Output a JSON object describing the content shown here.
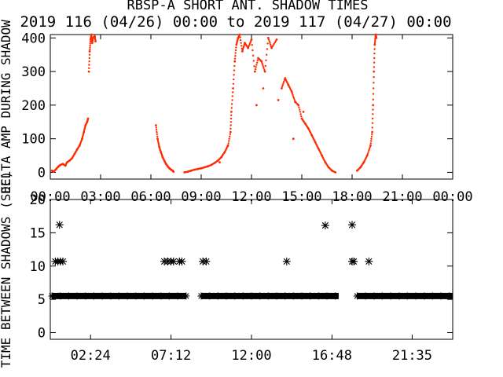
{
  "title": "RBSP-A SHORT ANT. SHADOW TIMES",
  "subtitle": "2019 116 (04/26) 00:00 to 2019 117 (04/27) 00:00",
  "colors": {
    "axis": "#000000",
    "scatter": "#ff2a00",
    "star": "#000000",
    "background": "#ffffff"
  },
  "chart_data": [
    {
      "type": "scatter",
      "panel": "top",
      "ylabel": "DELTA AMP DURING SHADOW",
      "x_unit": "hours",
      "xlim": [
        0,
        24
      ],
      "ylim": [
        -20,
        410
      ],
      "xticks": [
        0,
        3,
        6,
        9,
        12,
        15,
        18,
        21,
        24
      ],
      "xtick_labels": [
        "00:00",
        "03:00",
        "06:00",
        "09:00",
        "12:00",
        "15:00",
        "18:00",
        "21:00",
        "00:00"
      ],
      "yticks": [
        0,
        100,
        200,
        300,
        400
      ],
      "ytick_labels": [
        "0",
        "100",
        "200",
        "300",
        "400"
      ],
      "grid": false,
      "series": [
        {
          "color": "#ff2a00",
          "points": [
            [
              0.1,
              5
            ],
            [
              0.2,
              2
            ],
            [
              0.35,
              10
            ],
            [
              0.5,
              18
            ],
            [
              0.6,
              22
            ],
            [
              0.75,
              25
            ],
            [
              0.9,
              20
            ],
            [
              1.0,
              30
            ],
            [
              1.15,
              35
            ],
            [
              1.3,
              42
            ],
            [
              1.45,
              55
            ],
            [
              1.6,
              68
            ],
            [
              1.75,
              80
            ],
            [
              1.9,
              100
            ],
            [
              2.0,
              120
            ],
            [
              2.1,
              140
            ],
            [
              2.2,
              150
            ],
            [
              2.25,
              160
            ],
            [
              2.3,
              300
            ],
            [
              2.35,
              360
            ],
            [
              2.4,
              395
            ],
            [
              2.45,
              410
            ],
            [
              2.5,
              385
            ],
            [
              2.55,
              400
            ],
            [
              2.65,
              405
            ],
            [
              2.7,
              390
            ],
            [
              6.3,
              140
            ],
            [
              6.4,
              100
            ],
            [
              6.5,
              75
            ],
            [
              6.6,
              60
            ],
            [
              6.7,
              45
            ],
            [
              6.8,
              35
            ],
            [
              6.9,
              25
            ],
            [
              7.0,
              18
            ],
            [
              7.1,
              12
            ],
            [
              7.2,
              8
            ],
            [
              7.3,
              5
            ],
            [
              7.35,
              2
            ],
            [
              8.0,
              0
            ],
            [
              8.2,
              2
            ],
            [
              8.4,
              5
            ],
            [
              8.6,
              8
            ],
            [
              8.8,
              10
            ],
            [
              9.0,
              12
            ],
            [
              9.2,
              15
            ],
            [
              9.4,
              18
            ],
            [
              9.6,
              22
            ],
            [
              9.8,
              28
            ],
            [
              10.0,
              35
            ],
            [
              10.2,
              45
            ],
            [
              10.4,
              60
            ],
            [
              10.6,
              80
            ],
            [
              10.75,
              120
            ],
            [
              10.8,
              180
            ],
            [
              10.9,
              250
            ],
            [
              11.0,
              330
            ],
            [
              11.1,
              380
            ],
            [
              11.2,
              400
            ],
            [
              11.3,
              410
            ],
            [
              11.45,
              360
            ],
            [
              11.6,
              385
            ],
            [
              11.8,
              370
            ],
            [
              12.0,
              395
            ],
            [
              12.2,
              300
            ],
            [
              12.4,
              340
            ],
            [
              12.6,
              330
            ],
            [
              12.8,
              300
            ],
            [
              13.0,
              400
            ],
            [
              13.2,
              370
            ],
            [
              13.5,
              395
            ],
            [
              13.8,
              250
            ],
            [
              14.0,
              280
            ],
            [
              14.2,
              260
            ],
            [
              14.4,
              240
            ],
            [
              14.6,
              210
            ],
            [
              14.8,
              200
            ],
            [
              15.0,
              160
            ],
            [
              15.2,
              145
            ],
            [
              15.4,
              130
            ],
            [
              15.6,
              110
            ],
            [
              15.8,
              90
            ],
            [
              16.0,
              70
            ],
            [
              16.2,
              50
            ],
            [
              16.4,
              30
            ],
            [
              16.6,
              15
            ],
            [
              16.8,
              5
            ],
            [
              17.0,
              0
            ],
            [
              18.3,
              5
            ],
            [
              18.5,
              15
            ],
            [
              18.7,
              30
            ],
            [
              18.9,
              50
            ],
            [
              19.1,
              80
            ],
            [
              19.2,
              120
            ],
            [
              19.25,
              200
            ],
            [
              19.3,
              300
            ],
            [
              19.35,
              380
            ],
            [
              19.4,
              410
            ],
            [
              19.45,
              400
            ],
            [
              14.5,
              100
            ],
            [
              12.7,
              250
            ],
            [
              10.1,
              30
            ],
            [
              13.6,
              215
            ],
            [
              15.1,
              180
            ],
            [
              12.3,
              200
            ]
          ]
        }
      ]
    },
    {
      "type": "scatter",
      "panel": "bottom",
      "ylabel": "TIME BETWEEN SHADOWS (SEC)",
      "x_unit": "hours",
      "xlim": [
        0,
        24
      ],
      "ylim": [
        -1,
        20
      ],
      "xticks": [
        2.4,
        7.2,
        12.0,
        16.8,
        21.5833
      ],
      "xtick_labels": [
        "02:24",
        "07:12",
        "12:00",
        "16:48",
        "21:35"
      ],
      "yticks": [
        0,
        5,
        10,
        15,
        20
      ],
      "ytick_labels": [
        "0",
        "5",
        "10",
        "15",
        "20"
      ],
      "grid": false,
      "baseline": {
        "value": 5.5,
        "segments": [
          [
            0.1,
            8.1
          ],
          [
            9.0,
            17.2
          ],
          [
            18.3,
            24.0
          ]
        ]
      },
      "points": [
        [
          0.3,
          10.7
        ],
        [
          0.45,
          10.7
        ],
        [
          0.6,
          10.7
        ],
        [
          0.75,
          10.7
        ],
        [
          0.55,
          16.2
        ],
        [
          6.8,
          10.7
        ],
        [
          7.0,
          10.7
        ],
        [
          7.2,
          10.7
        ],
        [
          7.35,
          10.7
        ],
        [
          7.7,
          10.7
        ],
        [
          7.85,
          10.7
        ],
        [
          9.1,
          10.7
        ],
        [
          9.3,
          10.7
        ],
        [
          14.1,
          10.7
        ],
        [
          16.4,
          16.1
        ],
        [
          18.0,
          16.2
        ],
        [
          18.0,
          10.7
        ],
        [
          18.1,
          10.7
        ],
        [
          19.0,
          10.7
        ]
      ]
    }
  ]
}
